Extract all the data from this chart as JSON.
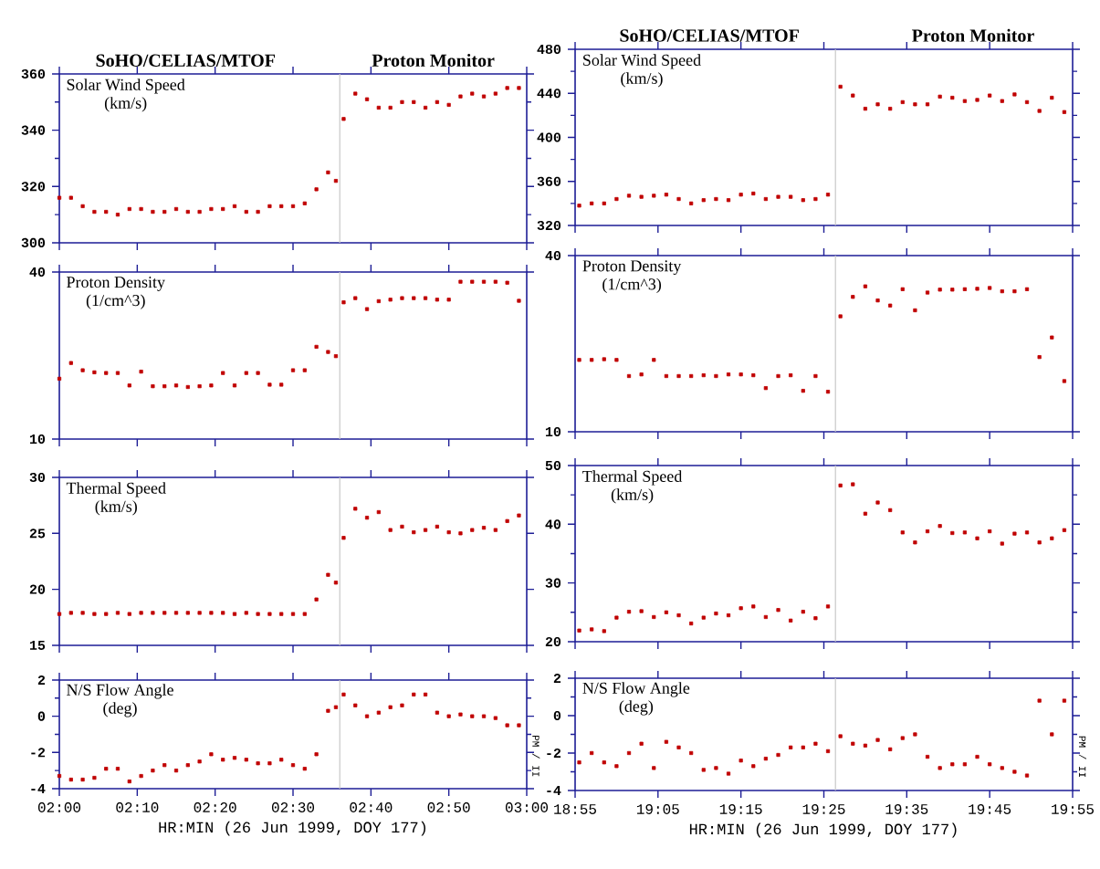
{
  "chart_data": [
    {
      "type": "scatter",
      "title": "Solar Wind Speed",
      "subtitle": "(km/s)",
      "annotations": [
        "SoHO/CELIAS/MTOF",
        "Proton Monitor"
      ],
      "marker": "square",
      "color": "#c00000",
      "tick_labels": "y",
      "x": [
        2.0,
        2.025,
        2.05,
        2.075,
        2.1,
        2.125,
        2.15,
        2.175,
        2.2,
        2.225,
        2.25,
        2.275,
        2.3,
        2.325,
        2.35,
        2.375,
        2.4,
        2.425,
        2.45,
        2.475,
        2.5,
        2.525,
        2.55,
        2.575,
        2.5917,
        2.6083,
        2.6333,
        2.6583,
        2.6833,
        2.7083,
        2.7333,
        2.7583,
        2.7833,
        2.8083,
        2.8333,
        2.8583,
        2.8833,
        2.9083,
        2.9333,
        2.9583,
        2.9833
      ],
      "values": [
        316,
        316,
        313,
        311,
        311,
        310,
        312,
        312,
        311,
        311,
        312,
        311,
        311,
        312,
        312,
        313,
        311,
        311,
        313,
        313,
        313,
        314,
        319,
        325,
        322,
        344,
        353,
        351,
        348,
        348,
        350,
        350,
        348,
        350,
        349,
        352,
        353,
        352,
        353,
        355,
        355
      ],
      "xlim": [
        2.0,
        3.0
      ],
      "xticks": [
        {
          "value": 2.0,
          "label": null
        },
        {
          "value": 2.1667,
          "label": null
        },
        {
          "value": 2.3333,
          "label": null
        },
        {
          "value": 2.5,
          "label": null
        },
        {
          "value": 2.6667,
          "label": null
        },
        {
          "value": 2.8333,
          "label": null
        },
        {
          "value": 3.0,
          "label": null
        }
      ],
      "ylim": [
        300,
        360
      ],
      "yticks": [
        300,
        320,
        340,
        360
      ],
      "ref_lines": [
        {
          "axis": "x",
          "value": 2.6,
          "color": "#c8c8c8"
        }
      ]
    },
    {
      "type": "scatter",
      "title": "Proton Density",
      "subtitle": "(1/cm^3)",
      "marker": "square",
      "color": "#c00000",
      "tick_labels": "y",
      "log": true,
      "x": [
        2.0,
        2.025,
        2.05,
        2.075,
        2.1,
        2.125,
        2.15,
        2.175,
        2.2,
        2.225,
        2.25,
        2.275,
        2.3,
        2.325,
        2.35,
        2.375,
        2.4,
        2.425,
        2.45,
        2.475,
        2.5,
        2.525,
        2.55,
        2.575,
        2.5917,
        2.6083,
        2.6333,
        2.6583,
        2.6833,
        2.7083,
        2.7333,
        2.7583,
        2.7833,
        2.8083,
        2.8333,
        2.8583,
        2.8833,
        2.9083,
        2.9333,
        2.9583,
        2.9833
      ],
      "values": [
        16.5,
        18.8,
        17.7,
        17.4,
        17.3,
        17.3,
        15.6,
        17.5,
        15.5,
        15.5,
        15.6,
        15.4,
        15.5,
        15.6,
        17.3,
        15.6,
        17.3,
        17.3,
        15.7,
        15.7,
        17.7,
        17.7,
        21.5,
        20.6,
        19.9,
        31.1,
        32.2,
        29.4,
        31.4,
        31.8,
        32.2,
        32.2,
        32.2,
        31.8,
        31.8,
        36.9,
        36.9,
        36.9,
        36.9,
        36.6,
        31.5
      ],
      "xlim": [
        2.0,
        3.0
      ],
      "xticks": [
        {
          "value": 2.0,
          "label": null
        },
        {
          "value": 2.1667,
          "label": null
        },
        {
          "value": 2.3333,
          "label": null
        },
        {
          "value": 2.5,
          "label": null
        },
        {
          "value": 2.6667,
          "label": null
        },
        {
          "value": 2.8333,
          "label": null
        },
        {
          "value": 3.0,
          "label": null
        }
      ],
      "ylim": [
        10,
        40
      ],
      "yticks": [
        10,
        40
      ],
      "ref_lines": [
        {
          "axis": "x",
          "value": 2.6,
          "color": "#c8c8c8"
        }
      ]
    },
    {
      "type": "scatter",
      "title": "Thermal Speed",
      "subtitle": "(km/s)",
      "marker": "square",
      "color": "#c00000",
      "tick_labels": "y",
      "x": [
        2.0,
        2.025,
        2.05,
        2.075,
        2.1,
        2.125,
        2.15,
        2.175,
        2.2,
        2.225,
        2.25,
        2.275,
        2.3,
        2.325,
        2.35,
        2.375,
        2.4,
        2.425,
        2.45,
        2.475,
        2.5,
        2.525,
        2.55,
        2.575,
        2.5917,
        2.6083,
        2.6333,
        2.6583,
        2.6833,
        2.7083,
        2.7333,
        2.7583,
        2.7833,
        2.8083,
        2.8333,
        2.8583,
        2.8833,
        2.9083,
        2.9333,
        2.9583,
        2.9833
      ],
      "values": [
        17.8,
        17.9,
        17.9,
        17.8,
        17.8,
        17.9,
        17.8,
        17.9,
        17.9,
        17.9,
        17.9,
        17.9,
        17.9,
        17.9,
        17.9,
        17.8,
        17.9,
        17.8,
        17.8,
        17.8,
        17.8,
        17.8,
        19.1,
        21.3,
        20.6,
        24.6,
        27.2,
        26.4,
        26.9,
        25.3,
        25.6,
        25.1,
        25.3,
        25.6,
        25.1,
        25.0,
        25.3,
        25.5,
        25.3,
        26.1,
        26.6
      ],
      "xlim": [
        2.0,
        3.0
      ],
      "xticks": [
        {
          "value": 2.0,
          "label": null
        },
        {
          "value": 2.1667,
          "label": null
        },
        {
          "value": 2.3333,
          "label": null
        },
        {
          "value": 2.5,
          "label": null
        },
        {
          "value": 2.6667,
          "label": null
        },
        {
          "value": 2.8333,
          "label": null
        },
        {
          "value": 3.0,
          "label": null
        }
      ],
      "ylim": [
        15,
        30
      ],
      "yticks": [
        15,
        20,
        25,
        30
      ],
      "ref_lines": [
        {
          "axis": "x",
          "value": 2.6,
          "color": "#c8c8c8"
        }
      ]
    },
    {
      "type": "scatter",
      "title": "N/S Flow Angle",
      "subtitle": "(deg)",
      "xlabel": "HR:MIN (26 Jun 1999, DOY 177)",
      "annotations": [
        "PM / II"
      ],
      "marker": "square",
      "color": "#c00000",
      "x": [
        2.0,
        2.025,
        2.05,
        2.075,
        2.1,
        2.125,
        2.15,
        2.175,
        2.2,
        2.225,
        2.25,
        2.275,
        2.3,
        2.325,
        2.35,
        2.375,
        2.4,
        2.425,
        2.45,
        2.475,
        2.5,
        2.525,
        2.55,
        2.575,
        2.5917,
        2.6083,
        2.6333,
        2.6583,
        2.6833,
        2.7083,
        2.7333,
        2.7583,
        2.7833,
        2.8083,
        2.8333,
        2.8583,
        2.8833,
        2.9083,
        2.9333,
        2.9583,
        2.9833
      ],
      "values": [
        -3.3,
        -3.5,
        -3.5,
        -3.4,
        -2.9,
        -2.9,
        -3.6,
        -3.3,
        -3.0,
        -2.7,
        -3.0,
        -2.7,
        -2.5,
        -2.1,
        -2.4,
        -2.3,
        -2.4,
        -2.6,
        -2.6,
        -2.4,
        -2.7,
        -2.9,
        -2.1,
        0.3,
        0.5,
        1.2,
        0.6,
        0.0,
        0.2,
        0.5,
        0.6,
        1.2,
        1.2,
        0.2,
        0.0,
        0.1,
        0.0,
        0.0,
        -0.1,
        -0.5,
        -0.5
      ],
      "xlim": [
        2.0,
        3.0
      ],
      "xticks": [
        {
          "value": 2.0,
          "label": "02:00"
        },
        {
          "value": 2.1667,
          "label": "02:10"
        },
        {
          "value": 2.3333,
          "label": "02:20"
        },
        {
          "value": 2.5,
          "label": "02:30"
        },
        {
          "value": 2.6667,
          "label": "02:40"
        },
        {
          "value": 2.8333,
          "label": "02:50"
        },
        {
          "value": 3.0,
          "label": "03:00"
        }
      ],
      "ylim": [
        -4,
        2
      ],
      "yticks": [
        -4,
        -2,
        0,
        2
      ],
      "ref_lines": [
        {
          "axis": "x",
          "value": 2.6,
          "color": "#c8c8c8"
        }
      ]
    },
    {
      "type": "scatter",
      "title": "Solar Wind Speed",
      "subtitle": "(km/s)",
      "annotations": [
        "SoHO/CELIAS/MTOF",
        "Proton Monitor"
      ],
      "marker": "square",
      "color": "#c00000",
      "tick_labels": "y",
      "x": [
        18.925,
        18.95,
        18.975,
        19.0,
        19.025,
        19.05,
        19.075,
        19.1,
        19.125,
        19.15,
        19.175,
        19.2,
        19.225,
        19.25,
        19.275,
        19.3,
        19.325,
        19.35,
        19.375,
        19.4,
        19.425,
        19.45,
        19.475,
        19.5,
        19.525,
        19.55,
        19.575,
        19.6,
        19.625,
        19.65,
        19.675,
        19.7,
        19.725,
        19.75,
        19.775,
        19.8,
        19.825,
        19.85,
        19.875,
        19.9
      ],
      "values": [
        338,
        340,
        340,
        344,
        347,
        346,
        347,
        348,
        344,
        340,
        343,
        344,
        343,
        348,
        349,
        344,
        346,
        346,
        343,
        344,
        348,
        446,
        438,
        426,
        430,
        426,
        432,
        430,
        430,
        437,
        436,
        433,
        434,
        438,
        433,
        439,
        432,
        424,
        436,
        423
      ],
      "xlim": [
        18.9167,
        19.9167
      ],
      "xticks": [
        {
          "value": 18.9167,
          "label": null
        },
        {
          "value": 19.0833,
          "label": null
        },
        {
          "value": 19.25,
          "label": null
        },
        {
          "value": 19.4167,
          "label": null
        },
        {
          "value": 19.5833,
          "label": null
        },
        {
          "value": 19.75,
          "label": null
        },
        {
          "value": 19.9167,
          "label": null
        }
      ],
      "ylim": [
        320,
        480
      ],
      "yticks": [
        320,
        360,
        400,
        440,
        480
      ],
      "ref_lines": [
        {
          "axis": "x",
          "value": 19.44,
          "color": "#c8c8c8"
        }
      ]
    },
    {
      "type": "scatter",
      "title": "Proton Density",
      "subtitle": "(1/cm^3)",
      "marker": "square",
      "color": "#c00000",
      "tick_labels": "y",
      "log": true,
      "x": [
        18.925,
        18.95,
        18.975,
        19.0,
        19.025,
        19.05,
        19.075,
        19.1,
        19.125,
        19.15,
        19.175,
        19.2,
        19.225,
        19.25,
        19.275,
        19.3,
        19.325,
        19.35,
        19.375,
        19.4,
        19.425,
        19.45,
        19.475,
        19.5,
        19.525,
        19.55,
        19.575,
        19.6,
        19.625,
        19.65,
        19.675,
        19.7,
        19.725,
        19.75,
        19.775,
        19.8,
        19.825,
        19.85,
        19.875,
        19.9
      ],
      "values": [
        17.6,
        17.6,
        17.7,
        17.6,
        15.5,
        15.7,
        17.6,
        15.5,
        15.5,
        15.5,
        15.6,
        15.5,
        15.7,
        15.7,
        15.6,
        14.1,
        15.5,
        15.6,
        13.8,
        15.5,
        13.7,
        24.8,
        28.9,
        31.4,
        28.1,
        27.0,
        30.7,
        26.0,
        29.9,
        30.6,
        30.6,
        30.7,
        30.8,
        31.0,
        30.2,
        30.2,
        30.7,
        18.0,
        21.0,
        14.9
      ],
      "xlim": [
        18.9167,
        19.9167
      ],
      "xticks": [
        {
          "value": 18.9167,
          "label": null
        },
        {
          "value": 19.0833,
          "label": null
        },
        {
          "value": 19.25,
          "label": null
        },
        {
          "value": 19.4167,
          "label": null
        },
        {
          "value": 19.5833,
          "label": null
        },
        {
          "value": 19.75,
          "label": null
        },
        {
          "value": 19.9167,
          "label": null
        }
      ],
      "ylim": [
        10,
        40
      ],
      "yticks": [
        10,
        40
      ],
      "ref_lines": [
        {
          "axis": "x",
          "value": 19.44,
          "color": "#c8c8c8"
        }
      ]
    },
    {
      "type": "scatter",
      "title": "Thermal Speed",
      "subtitle": "(km/s)",
      "marker": "square",
      "color": "#c00000",
      "tick_labels": "y",
      "x": [
        18.925,
        18.95,
        18.975,
        19.0,
        19.025,
        19.05,
        19.075,
        19.1,
        19.125,
        19.15,
        19.175,
        19.2,
        19.225,
        19.25,
        19.275,
        19.3,
        19.325,
        19.35,
        19.375,
        19.4,
        19.425,
        19.45,
        19.475,
        19.5,
        19.525,
        19.55,
        19.575,
        19.6,
        19.625,
        19.65,
        19.675,
        19.7,
        19.725,
        19.75,
        19.775,
        19.8,
        19.825,
        19.85,
        19.875,
        19.9
      ],
      "values": [
        21.9,
        22.1,
        21.8,
        24.1,
        25.1,
        25.2,
        24.2,
        25.0,
        24.5,
        23.1,
        24.1,
        24.8,
        24.5,
        25.7,
        26.0,
        24.2,
        25.4,
        23.6,
        25.1,
        24.0,
        26.0,
        46.6,
        46.8,
        41.8,
        43.7,
        42.4,
        38.6,
        36.9,
        38.8,
        39.7,
        38.5,
        38.6,
        37.6,
        38.8,
        36.7,
        38.4,
        38.6,
        36.9,
        37.6,
        39.0
      ],
      "xlim": [
        18.9167,
        19.9167
      ],
      "xticks": [
        {
          "value": 18.9167,
          "label": null
        },
        {
          "value": 19.0833,
          "label": null
        },
        {
          "value": 19.25,
          "label": null
        },
        {
          "value": 19.4167,
          "label": null
        },
        {
          "value": 19.5833,
          "label": null
        },
        {
          "value": 19.75,
          "label": null
        },
        {
          "value": 19.9167,
          "label": null
        }
      ],
      "ylim": [
        20,
        50
      ],
      "yticks": [
        20,
        30,
        40,
        50
      ],
      "ref_lines": [
        {
          "axis": "x",
          "value": 19.44,
          "color": "#c8c8c8"
        }
      ]
    },
    {
      "type": "scatter",
      "title": "N/S Flow Angle",
      "subtitle": "(deg)",
      "xlabel": "HR:MIN (26 Jun 1999, DOY 177)",
      "annotations": [
        "PM / II"
      ],
      "marker": "square",
      "color": "#c00000",
      "x": [
        18.925,
        18.95,
        18.975,
        19.0,
        19.025,
        19.05,
        19.075,
        19.1,
        19.125,
        19.15,
        19.175,
        19.2,
        19.225,
        19.25,
        19.275,
        19.3,
        19.325,
        19.35,
        19.375,
        19.4,
        19.425,
        19.45,
        19.475,
        19.5,
        19.525,
        19.55,
        19.575,
        19.6,
        19.625,
        19.65,
        19.675,
        19.7,
        19.725,
        19.75,
        19.775,
        19.8,
        19.825,
        19.85,
        19.875,
        19.9
      ],
      "values": [
        -2.5,
        -2.0,
        -2.5,
        -2.7,
        -2.0,
        -1.5,
        -2.8,
        -1.4,
        -1.7,
        -2.0,
        -2.9,
        -2.8,
        -3.1,
        -2.4,
        -2.7,
        -2.3,
        -2.1,
        -1.7,
        -1.7,
        -1.5,
        -1.9,
        -1.1,
        -1.5,
        -1.6,
        -1.3,
        -1.8,
        -1.2,
        -1.0,
        -2.2,
        -2.8,
        -2.6,
        -2.6,
        -2.2,
        -2.6,
        -2.8,
        -3.0,
        -3.2,
        0.8,
        -1.0,
        0.8
      ],
      "xlim": [
        18.9167,
        19.9167
      ],
      "xticks": [
        {
          "value": 18.9167,
          "label": "18:55"
        },
        {
          "value": 19.0833,
          "label": "19:05"
        },
        {
          "value": 19.25,
          "label": "19:15"
        },
        {
          "value": 19.4167,
          "label": "19:25"
        },
        {
          "value": 19.5833,
          "label": "19:35"
        },
        {
          "value": 19.75,
          "label": "19:45"
        },
        {
          "value": 19.9167,
          "label": "19:55"
        }
      ],
      "ylim": [
        -4,
        2
      ],
      "yticks": [
        -4,
        -2,
        0,
        2
      ],
      "ref_lines": [
        {
          "axis": "x",
          "value": 19.44,
          "color": "#c8c8c8"
        }
      ]
    }
  ]
}
